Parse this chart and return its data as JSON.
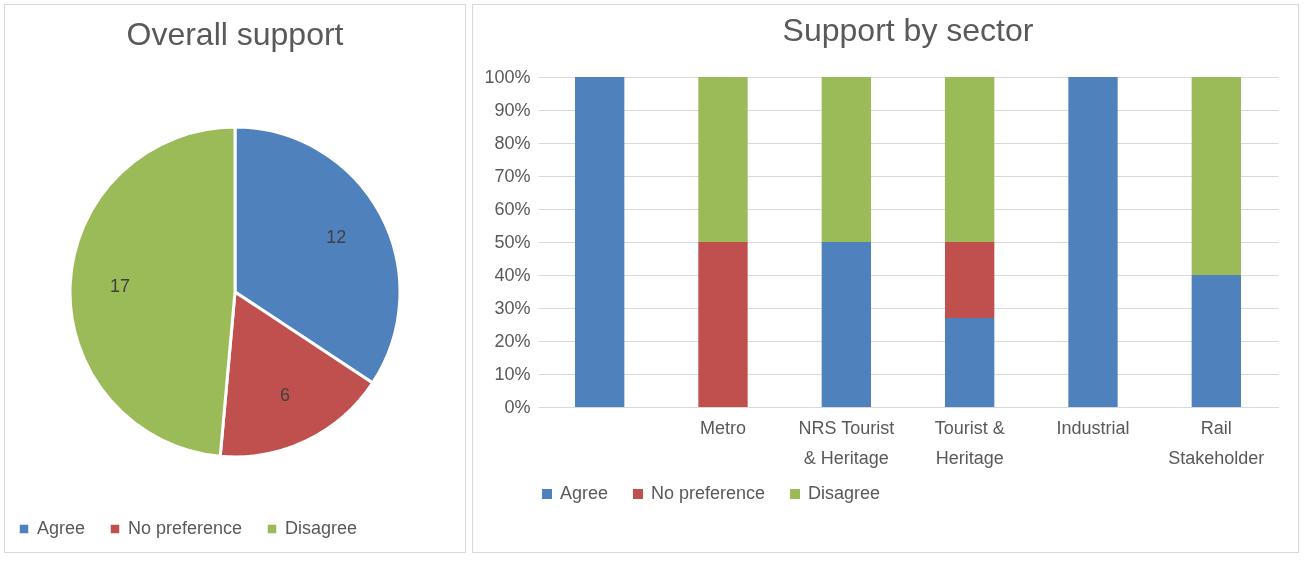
{
  "chart_data": [
    {
      "type": "pie",
      "title": "Overall support",
      "categories": [
        "Agree",
        "No preference",
        "Disagree"
      ],
      "values": [
        12,
        6,
        17
      ],
      "colors": [
        "#4f81bd",
        "#c0504d",
        "#9bbb59"
      ],
      "data_labels": true,
      "legend": "bottom"
    },
    {
      "type": "bar",
      "title": "Support by sector",
      "categories": [
        null,
        "Metro",
        "NRS Tourist & Heritage",
        "Tourist & Heritage",
        "Industrial",
        "Rail Stakeholder"
      ],
      "stacked": true,
      "grid": "y",
      "legend": "bottom",
      "series": [
        {
          "name": "Agree",
          "color": "#4f81bd",
          "values": [
            100,
            0,
            50,
            27,
            100,
            40
          ]
        },
        {
          "name": "No preference",
          "color": "#c0504d",
          "values": [
            0,
            50,
            0,
            23,
            0,
            0
          ]
        },
        {
          "name": "Disagree",
          "color": "#9bbb59",
          "values": [
            0,
            50,
            50,
            50,
            0,
            60
          ]
        }
      ],
      "ylim": [
        0,
        100
      ],
      "yticks": [
        {
          "value": 0,
          "label": "0%"
        },
        {
          "value": 10,
          "label": "10%"
        },
        {
          "value": 20,
          "label": "20%"
        },
        {
          "value": 30,
          "label": "30%"
        },
        {
          "value": 40,
          "label": "40%"
        },
        {
          "value": 50,
          "label": "50%"
        },
        {
          "value": 60,
          "label": "60%"
        },
        {
          "value": 70,
          "label": "70%"
        },
        {
          "value": 80,
          "label": "80%"
        },
        {
          "value": 90,
          "label": "90%"
        },
        {
          "value": 100,
          "label": "100%"
        }
      ]
    }
  ]
}
